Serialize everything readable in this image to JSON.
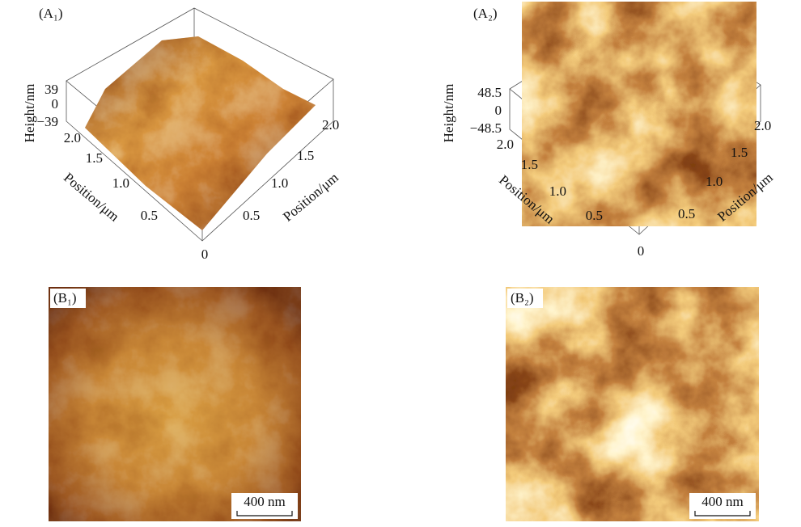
{
  "panels": [
    {
      "label": "(A₁)",
      "z_axis_label": "Height/nm",
      "z_ticks": [
        "39",
        "0",
        "−39"
      ],
      "left_axis_label": "Position/μm",
      "left_ticks": [
        "2.0",
        "1.5",
        "1.0",
        "0.5"
      ],
      "origin": "0",
      "right_axis_label": "Position/μm",
      "right_ticks": [
        "0.5",
        "1.0",
        "1.5",
        "2.0"
      ]
    },
    {
      "label": "(A₂)",
      "z_axis_label": "Height/nm",
      "z_ticks": [
        "48.5",
        "0",
        "−48.5"
      ],
      "left_axis_label": "Position/μm",
      "left_ticks": [
        "2.0",
        "1.5",
        "1.0",
        "0.5"
      ],
      "origin": "0",
      "right_axis_label": "Position/μm",
      "right_ticks": [
        "0.5",
        "1.0",
        "1.5",
        "2.0"
      ]
    },
    {
      "label": "(B₁)",
      "scale_bar": "400 nm"
    },
    {
      "label": "(B₂)",
      "scale_bar": "400 nm"
    }
  ]
}
